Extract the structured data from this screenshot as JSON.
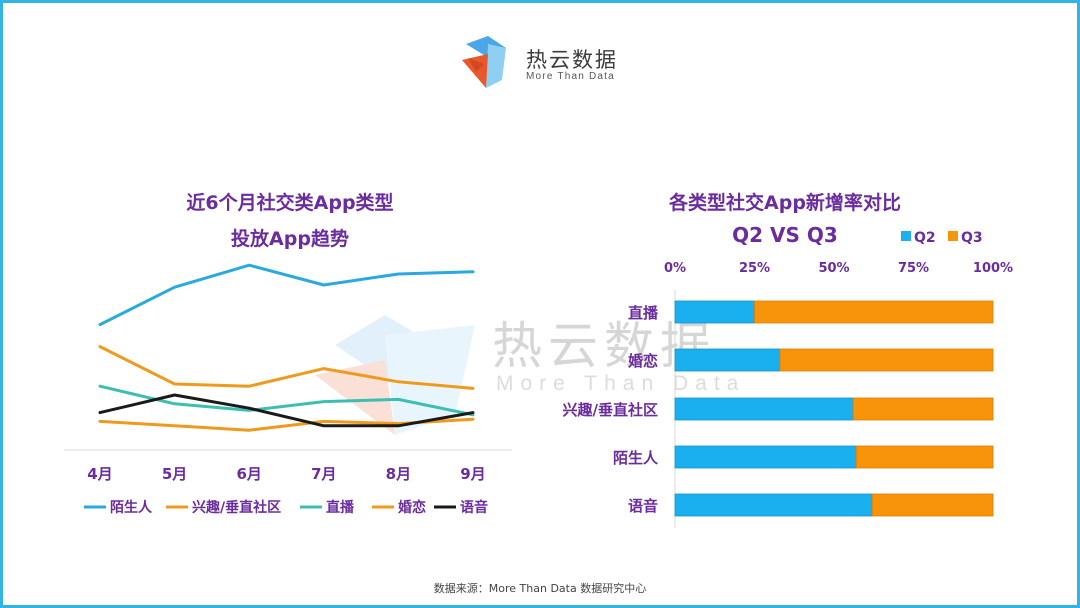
{
  "brand": {
    "name": "热云数据",
    "tagline": "More Than Data",
    "colors": {
      "blue": "#4aa6e8",
      "orange": "#e8582a",
      "lightblue": "#8fd0f2"
    }
  },
  "watermark": {
    "name": "热云数据",
    "tagline": "More Than Data"
  },
  "source": "数据来源：More Than Data 数据研究中心",
  "chart_data": [
    {
      "type": "line",
      "title": [
        "近6个月社交类App类型",
        "投放App趋势"
      ],
      "categories": [
        "4月",
        "5月",
        "6月",
        "7月",
        "8月",
        "9月"
      ],
      "ylim": [
        0,
        100
      ],
      "series": [
        {
          "name": "陌生人",
          "color": "#29a9e0",
          "values": [
            57,
            74,
            84,
            75,
            80,
            81
          ]
        },
        {
          "name": "兴趣/垂直社区",
          "color": "#ef9a1d",
          "values": [
            47,
            30,
            29,
            37,
            31,
            28
          ]
        },
        {
          "name": "直播",
          "color": "#3cbfb0",
          "values": [
            29,
            21,
            18,
            22,
            23,
            16
          ]
        },
        {
          "name": "婚恋",
          "color": "#ef9a1d",
          "values": [
            13,
            11,
            9,
            13,
            12,
            14
          ]
        },
        {
          "name": "语音",
          "color": "#1a1a1a",
          "values": [
            17,
            25,
            19,
            11,
            11,
            17
          ]
        }
      ]
    },
    {
      "type": "bar",
      "stacked": true,
      "orientation": "horizontal",
      "title": [
        "各类型社交App新增率对比",
        "Q2 VS Q3"
      ],
      "categories": [
        "直播",
        "婚恋",
        "兴趣/垂直社区",
        "陌生人",
        "语音"
      ],
      "xticks": [
        "0%",
        "25%",
        "50%",
        "75%",
        "100%"
      ],
      "xlim": [
        0,
        100
      ],
      "series": [
        {
          "name": "Q2",
          "color": "#1ab0ef",
          "values": [
            25,
            33,
            56,
            57,
            62
          ]
        },
        {
          "name": "Q3",
          "color": "#f7940a",
          "values": [
            75,
            67,
            44,
            43,
            38
          ]
        }
      ]
    }
  ]
}
